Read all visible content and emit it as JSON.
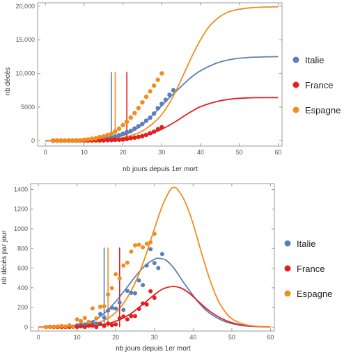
{
  "colors": {
    "Italie": "#5b7fb8",
    "France": "#e51e1e",
    "Espagne": "#f28c1a",
    "frame": "#9a9a9a",
    "tick_text": "#555555"
  },
  "chart_data": [
    {
      "type": "scatter",
      "title": "",
      "xlabel": "nb jours depuis 1er mort",
      "ylabel": "nb décès",
      "xlim": [
        -2,
        61
      ],
      "ylim": [
        -800,
        20500
      ],
      "xticks": [
        0,
        10,
        20,
        30,
        40,
        50,
        60
      ],
      "yticks": [
        0,
        5000,
        10000,
        15000,
        20000
      ],
      "legend_position": "right",
      "grid": false,
      "series": [
        {
          "name": "Italie",
          "color": "#5b7fb8",
          "points_x": [
            2,
            3,
            4,
            5,
            6,
            7,
            8,
            9,
            10,
            11,
            12,
            13,
            14,
            15,
            16,
            17,
            18,
            19,
            20,
            21,
            22,
            23,
            24,
            25,
            26,
            27,
            28,
            29,
            30,
            31,
            32,
            33
          ],
          "points_y": [
            3,
            7,
            10,
            12,
            17,
            21,
            29,
            34,
            52,
            79,
            107,
            148,
            197,
            233,
            366,
            463,
            631,
            827,
            1016,
            1266,
            1441,
            1809,
            2158,
            2503,
            2978,
            3405,
            4032,
            4825,
            5476,
            6077,
            6820,
            7503
          ],
          "fit_y": [
            [
              0,
              0
            ],
            [
              10,
              30
            ],
            [
              15,
              150
            ],
            [
              18,
              450
            ],
            [
              20,
              760
            ],
            [
              22,
              1250
            ],
            [
              24,
              1950
            ],
            [
              26,
              2900
            ],
            [
              28,
              4000
            ],
            [
              30,
              5200
            ],
            [
              32,
              6400
            ],
            [
              34,
              7500
            ],
            [
              36,
              8600
            ],
            [
              38,
              9600
            ],
            [
              40,
              10400
            ],
            [
              44,
              11500
            ],
            [
              48,
              12100
            ],
            [
              52,
              12350
            ],
            [
              56,
              12450
            ],
            [
              60,
              12500
            ]
          ],
          "vline_x": 17,
          "vline_top": 10200
        },
        {
          "name": "France",
          "color": "#e51e1e",
          "points_x": [
            2,
            3,
            4,
            5,
            6,
            7,
            8,
            9,
            10,
            11,
            12,
            13,
            14,
            15,
            16,
            17,
            18,
            19,
            20,
            21,
            22,
            23,
            24,
            25,
            26,
            27,
            28,
            29,
            30
          ],
          "points_y": [
            1,
            2,
            2,
            2,
            3,
            4,
            6,
            9,
            11,
            19,
            19,
            33,
            48,
            48,
            79,
            91,
            127,
            148,
            175,
            264,
            372,
            450,
            562,
            674,
            860,
            1100,
            1331,
            1696,
            1995
          ],
          "fit_y": [
            [
              0,
              0
            ],
            [
              10,
              10
            ],
            [
              15,
              40
            ],
            [
              20,
              200
            ],
            [
              22,
              330
            ],
            [
              24,
              540
            ],
            [
              26,
              820
            ],
            [
              28,
              1200
            ],
            [
              30,
              1700
            ],
            [
              32,
              2300
            ],
            [
              34,
              3000
            ],
            [
              36,
              3750
            ],
            [
              38,
              4450
            ],
            [
              40,
              5050
            ],
            [
              44,
              5800
            ],
            [
              48,
              6200
            ],
            [
              52,
              6350
            ],
            [
              56,
              6400
            ],
            [
              60,
              6400
            ]
          ],
          "vline_x": 21,
          "vline_top": 10200
        },
        {
          "name": "Espagne",
          "color": "#f28c1a",
          "points_x": [
            2,
            3,
            4,
            5,
            6,
            7,
            8,
            9,
            10,
            11,
            12,
            13,
            14,
            15,
            16,
            17,
            18,
            19,
            20,
            21,
            22,
            23,
            24,
            25,
            26,
            27,
            28,
            29,
            30
          ],
          "points_y": [
            3,
            5,
            10,
            17,
            28,
            35,
            54,
            55,
            133,
            195,
            289,
            342,
            533,
            623,
            830,
            1043,
            1375,
            1772,
            2311,
            2808,
            3434,
            4089,
            4858,
            5690,
            6528,
            7340,
            8189,
            9053,
            10003
          ],
          "fit_y": [
            [
              0,
              0
            ],
            [
              10,
              20
            ],
            [
              15,
              90
            ],
            [
              18,
              250
            ],
            [
              20,
              450
            ],
            [
              22,
              750
            ],
            [
              24,
              1150
            ],
            [
              26,
              1800
            ],
            [
              28,
              2700
            ],
            [
              30,
              3900
            ],
            [
              32,
              5600
            ],
            [
              34,
              7800
            ],
            [
              36,
              10300
            ],
            [
              38,
              12800
            ],
            [
              40,
              15000
            ],
            [
              42,
              16800
            ],
            [
              44,
              18000
            ],
            [
              46,
              18800
            ],
            [
              48,
              19300
            ],
            [
              52,
              19700
            ],
            [
              56,
              19850
            ],
            [
              60,
              19900
            ]
          ],
          "vline_x": 18,
          "vline_top": 10200
        }
      ]
    },
    {
      "type": "scatter",
      "title": "",
      "xlabel": "nb jours depuis 1er mort",
      "ylabel": "nb décès par jour",
      "xlim": [
        -2,
        61
      ],
      "ylim": [
        -40,
        1460
      ],
      "xticks": [
        0,
        10,
        20,
        30,
        40,
        50,
        60
      ],
      "yticks": [
        0,
        200,
        400,
        600,
        800,
        1000,
        1200,
        1400
      ],
      "legend_position": "right",
      "grid": false,
      "series": [
        {
          "name": "Italie",
          "color": "#5b7fb8",
          "points_x": [
            2,
            3,
            4,
            5,
            6,
            7,
            8,
            9,
            10,
            11,
            12,
            13,
            14,
            15,
            16,
            17,
            18,
            19,
            20,
            21,
            22,
            23,
            24,
            25,
            26,
            27,
            28,
            29,
            30,
            31,
            32
          ],
          "points_y": [
            1,
            4,
            3,
            2,
            5,
            4,
            8,
            5,
            18,
            27,
            28,
            41,
            49,
            36,
            133,
            97,
            168,
            196,
            189,
            250,
            175,
            368,
            349,
            345,
            475,
            427,
            627,
            793,
            651,
            601,
            743
          ],
          "fit_y": [
            [
              0,
              0
            ],
            [
              5,
              5
            ],
            [
              10,
              20
            ],
            [
              14,
              60
            ],
            [
              17,
              140
            ],
            [
              20,
              260
            ],
            [
              23,
              410
            ],
            [
              26,
              560
            ],
            [
              28,
              640
            ],
            [
              30,
              690
            ],
            [
              31,
              700
            ],
            [
              33,
              680
            ],
            [
              35,
              600
            ],
            [
              38,
              430
            ],
            [
              41,
              270
            ],
            [
              44,
              150
            ],
            [
              48,
              60
            ],
            [
              52,
              20
            ],
            [
              56,
              6
            ],
            [
              60,
              2
            ]
          ],
          "vline_x": 17,
          "vline_top": 810
        },
        {
          "name": "France",
          "color": "#e51e1e",
          "points_x": [
            2,
            3,
            4,
            5,
            6,
            7,
            8,
            9,
            10,
            11,
            12,
            13,
            14,
            15,
            16,
            17,
            18,
            19,
            20,
            21,
            22,
            23,
            24,
            25,
            26,
            27,
            28,
            29,
            30
          ],
          "points_y": [
            0,
            1,
            0,
            0,
            1,
            1,
            2,
            3,
            2,
            8,
            0,
            14,
            15,
            0,
            31,
            12,
            36,
            21,
            27,
            89,
            108,
            78,
            112,
            112,
            186,
            240,
            231,
            365,
            299
          ],
          "fit_y": [
            [
              0,
              0
            ],
            [
              10,
              3
            ],
            [
              15,
              15
            ],
            [
              18,
              35
            ],
            [
              20,
              60
            ],
            [
              22,
              95
            ],
            [
              24,
              140
            ],
            [
              26,
              200
            ],
            [
              28,
              265
            ],
            [
              30,
              330
            ],
            [
              32,
              385
            ],
            [
              34,
              410
            ],
            [
              35,
              415
            ],
            [
              37,
              395
            ],
            [
              39,
              345
            ],
            [
              41,
              275
            ],
            [
              44,
              170
            ],
            [
              48,
              75
            ],
            [
              52,
              25
            ],
            [
              56,
              8
            ],
            [
              60,
              2
            ]
          ],
          "vline_x": 21,
          "vline_top": 810
        },
        {
          "name": "Espagne",
          "color": "#f28c1a",
          "points_x": [
            2,
            3,
            4,
            5,
            6,
            7,
            8,
            9,
            10,
            11,
            12,
            13,
            14,
            15,
            16,
            17,
            18,
            19,
            20,
            21,
            22,
            23,
            24,
            25,
            26,
            27,
            28,
            29,
            30
          ],
          "points_y": [
            2,
            2,
            5,
            7,
            11,
            7,
            19,
            1,
            78,
            62,
            94,
            53,
            191,
            90,
            207,
            213,
            332,
            397,
            539,
            497,
            626,
            655,
            769,
            832,
            838,
            812,
            849,
            864,
            950
          ],
          "fit_y": [
            [
              0,
              0
            ],
            [
              10,
              8
            ],
            [
              15,
              40
            ],
            [
              18,
              90
            ],
            [
              20,
              150
            ],
            [
              22,
              240
            ],
            [
              24,
              370
            ],
            [
              26,
              540
            ],
            [
              28,
              760
            ],
            [
              30,
              1000
            ],
            [
              32,
              1230
            ],
            [
              34,
              1390
            ],
            [
              35,
              1420
            ],
            [
              36,
              1400
            ],
            [
              38,
              1270
            ],
            [
              40,
              1050
            ],
            [
              42,
              780
            ],
            [
              44,
              520
            ],
            [
              46,
              310
            ],
            [
              48,
              170
            ],
            [
              50,
              85
            ],
            [
              53,
              30
            ],
            [
              56,
              10
            ],
            [
              60,
              3
            ]
          ],
          "vline_x": 18,
          "vline_top": 810
        }
      ]
    }
  ]
}
